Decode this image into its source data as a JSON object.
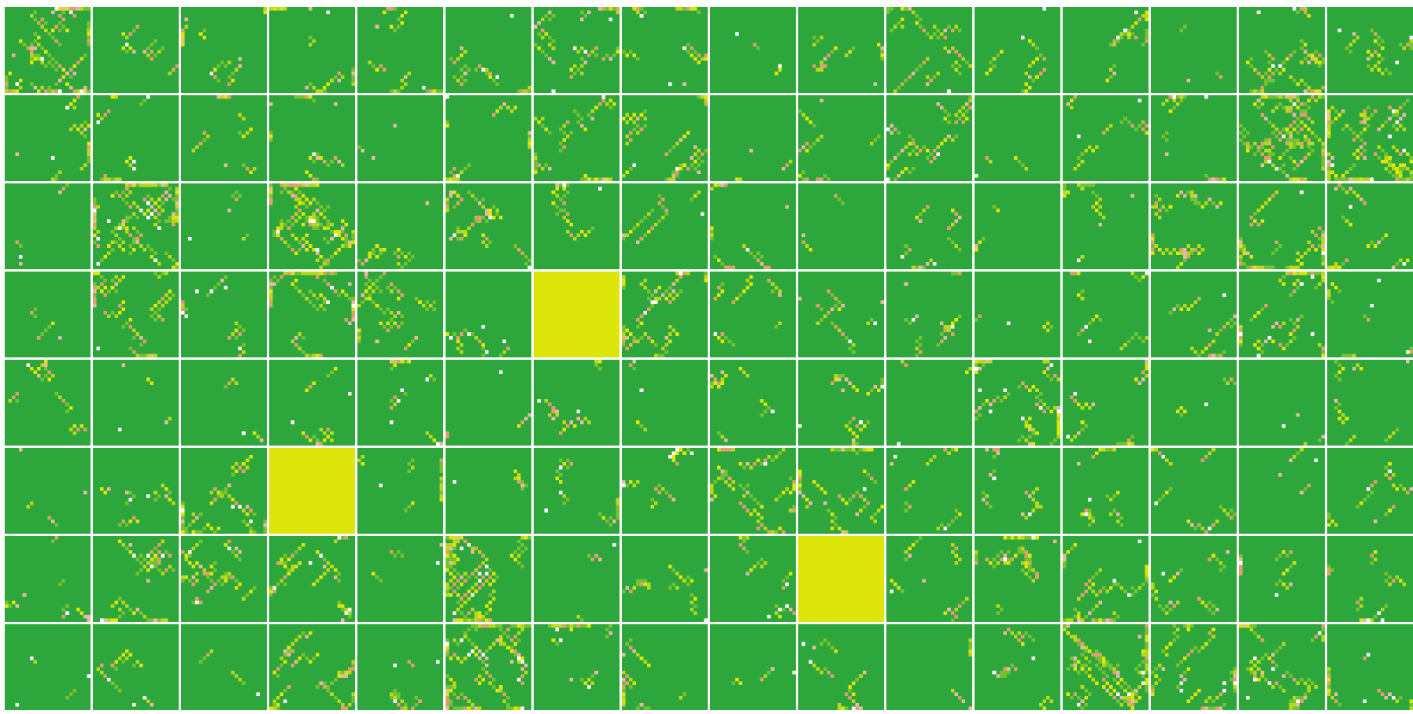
{
  "grid": {
    "rows": 8,
    "cols": 16,
    "cells_per_tile": 24
  },
  "palette": {
    "base": "#2da63c",
    "light_green": "#73c232",
    "yellow_green": "#b7d81c",
    "yellow": "#dde60a",
    "salmon": "#dfa070",
    "pink": "#e9b8aa",
    "white": "#ffffff"
  },
  "density_scale": [
    0,
    1,
    2,
    3
  ],
  "tiles": [
    [
      3,
      1,
      1,
      1,
      1,
      1,
      2,
      1,
      0,
      1,
      2,
      1,
      1,
      0,
      2,
      1
    ],
    [
      1,
      1,
      1,
      1,
      0,
      1,
      2,
      2,
      0,
      1,
      2,
      0,
      1,
      1,
      3,
      3
    ],
    [
      0,
      3,
      0,
      3,
      1,
      2,
      1,
      1,
      1,
      0,
      1,
      0,
      1,
      2,
      2,
      1
    ],
    [
      0,
      2,
      1,
      2,
      2,
      1,
      "solid",
      2,
      1,
      1,
      1,
      0,
      1,
      1,
      2,
      1
    ],
    [
      1,
      0,
      0,
      1,
      1,
      0,
      1,
      0,
      1,
      1,
      0,
      2,
      1,
      0,
      0,
      1
    ],
    [
      0,
      1,
      2,
      "solid",
      1,
      0,
      1,
      1,
      2,
      2,
      1,
      1,
      1,
      1,
      0,
      1
    ],
    [
      1,
      2,
      2,
      2,
      0,
      3,
      0,
      1,
      1,
      "solid",
      1,
      2,
      2,
      1,
      1,
      1
    ],
    [
      0,
      1,
      0,
      2,
      1,
      3,
      1,
      1,
      0,
      1,
      0,
      1,
      3,
      2,
      2,
      1
    ]
  ]
}
